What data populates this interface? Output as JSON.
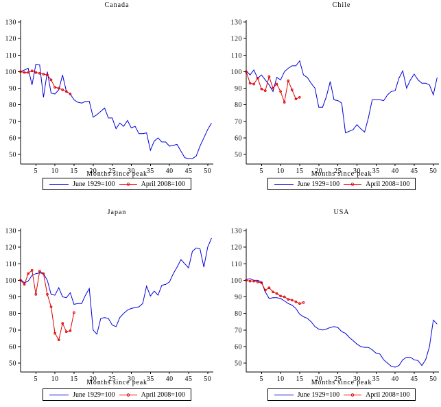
{
  "figure": {
    "background": "#ffffff",
    "text_color": "#000000",
    "axis_color": "#000000",
    "line_1929_color": "#0000dd",
    "line_2008_color": "#dd0000"
  },
  "chart_data": [
    {
      "type": "line",
      "title": "Canada",
      "xlabel": "Months since peak",
      "x_start": 1,
      "xlim": [
        1,
        51
      ],
      "ylim": [
        50,
        130
      ],
      "x_ticks": [
        5,
        10,
        15,
        20,
        25,
        30,
        35,
        40,
        45,
        50
      ],
      "y_ticks": [
        50,
        60,
        70,
        80,
        90,
        100,
        110,
        120,
        130
      ],
      "grid": false,
      "legend_position": "bottom",
      "series": [
        {
          "name": "June 1929=100",
          "marker": "none",
          "values": [
            100,
            101,
            102,
            92,
            104.5,
            104,
            84.5,
            100,
            87,
            86.5,
            89,
            98,
            88,
            86.5,
            83,
            81.5,
            81,
            82,
            82,
            72.5,
            74,
            76,
            78,
            72,
            72,
            65.5,
            69,
            67,
            70.5,
            66,
            67,
            62.5,
            62.5,
            63,
            52.5,
            58,
            60,
            57.5,
            57.5,
            55,
            55.5,
            56,
            52,
            48,
            47.5,
            47.5,
            49,
            55,
            60,
            65,
            69
          ]
        },
        {
          "name": "April 2008=100",
          "marker": "open-circle",
          "values": [
            100,
            99.5,
            99.5,
            100.5,
            99.5,
            99,
            98.5,
            98,
            95,
            90.5,
            90,
            89,
            88,
            86.5
          ]
        }
      ]
    },
    {
      "type": "line",
      "title": "Chile",
      "xlabel": "Months since peak",
      "x_start": 1,
      "xlim": [
        1,
        51
      ],
      "ylim": [
        50,
        130
      ],
      "x_ticks": [
        5,
        10,
        15,
        20,
        25,
        30,
        35,
        40,
        45,
        50
      ],
      "y_ticks": [
        50,
        60,
        70,
        80,
        90,
        100,
        110,
        120,
        130
      ],
      "grid": false,
      "legend_position": "bottom",
      "series": [
        {
          "name": "June 1929=100",
          "marker": "none",
          "values": [
            100.5,
            98,
            101,
            96,
            98,
            95,
            92,
            88,
            96.5,
            95,
            100,
            102,
            103.5,
            103.5,
            106.5,
            98,
            96.5,
            93,
            90,
            78.5,
            78.5,
            85,
            94,
            83,
            82.5,
            81,
            63,
            64,
            65,
            68,
            65.5,
            63.5,
            72,
            83,
            83,
            83,
            82.5,
            86,
            88,
            88.5,
            96,
            100.5,
            90,
            95,
            98.5,
            95,
            93,
            93,
            92,
            86,
            96.5
          ]
        },
        {
          "name": "April 2008=100",
          "marker": "open-circle",
          "values": [
            100,
            93,
            92.5,
            96,
            89.5,
            88.5,
            97,
            90,
            92.5,
            88,
            81.5,
            94.5,
            89,
            83.5,
            84.5
          ]
        }
      ]
    },
    {
      "type": "line",
      "title": "Japan",
      "xlabel": "Months since peak",
      "x_start": 1,
      "xlim": [
        1,
        51
      ],
      "ylim": [
        50,
        130
      ],
      "x_ticks": [
        5,
        10,
        15,
        20,
        25,
        30,
        35,
        40,
        45,
        50
      ],
      "y_ticks": [
        50,
        60,
        70,
        80,
        90,
        100,
        110,
        120,
        130
      ],
      "grid": false,
      "legend_position": "bottom",
      "series": [
        {
          "name": "June 1929=100",
          "marker": "none",
          "values": [
            100.5,
            98.5,
            99.5,
            103,
            104,
            104.5,
            104,
            100,
            91.5,
            91,
            95.5,
            90,
            89.5,
            92.5,
            85.5,
            86,
            86,
            91,
            95,
            70,
            67.5,
            77,
            77.5,
            77,
            73,
            72,
            77.5,
            80,
            82,
            83,
            83.5,
            84,
            86,
            96.5,
            90.5,
            93.5,
            91,
            97,
            97.5,
            99,
            104,
            108,
            112.5,
            110,
            107.5,
            117.5,
            119.5,
            119,
            108,
            120,
            125.5
          ]
        },
        {
          "name": "April 2008=100",
          "marker": "open-circle",
          "values": [
            100,
            97.5,
            104,
            106,
            91.5,
            105.5,
            104,
            91.5,
            84,
            68,
            64,
            74,
            69,
            69.5,
            80.5
          ]
        }
      ]
    },
    {
      "type": "line",
      "title": "USA",
      "xlabel": "Months since peak",
      "x_start": 1,
      "xlim": [
        1,
        51
      ],
      "ylim": [
        50,
        130
      ],
      "x_ticks": [
        5,
        10,
        15,
        20,
        25,
        30,
        35,
        40,
        45,
        50
      ],
      "y_ticks": [
        50,
        60,
        70,
        80,
        90,
        100,
        110,
        120,
        130
      ],
      "grid": false,
      "legend_position": "bottom",
      "series": [
        {
          "name": "June 1929=100",
          "marker": "none",
          "values": [
            100.5,
            101,
            100,
            100,
            99,
            93,
            89,
            89.5,
            89.5,
            89,
            87.5,
            86,
            85,
            83,
            79.5,
            78,
            77,
            75,
            72,
            70.5,
            70,
            70.5,
            71.5,
            72,
            71.5,
            69,
            68,
            65.5,
            63.5,
            61.5,
            60,
            59.5,
            59.5,
            58,
            56,
            55.5,
            52,
            50,
            48,
            47.5,
            48.5,
            52,
            53.5,
            53.5,
            52,
            51.5,
            48.5,
            52,
            60,
            76,
            73.5
          ]
        },
        {
          "name": "April 2008=100",
          "marker": "open-circle",
          "values": [
            100,
            99.5,
            99.5,
            99,
            98.5,
            94,
            95.5,
            93,
            92,
            90.5,
            90,
            88.5,
            88,
            87,
            86,
            86.5
          ]
        }
      ]
    }
  ]
}
